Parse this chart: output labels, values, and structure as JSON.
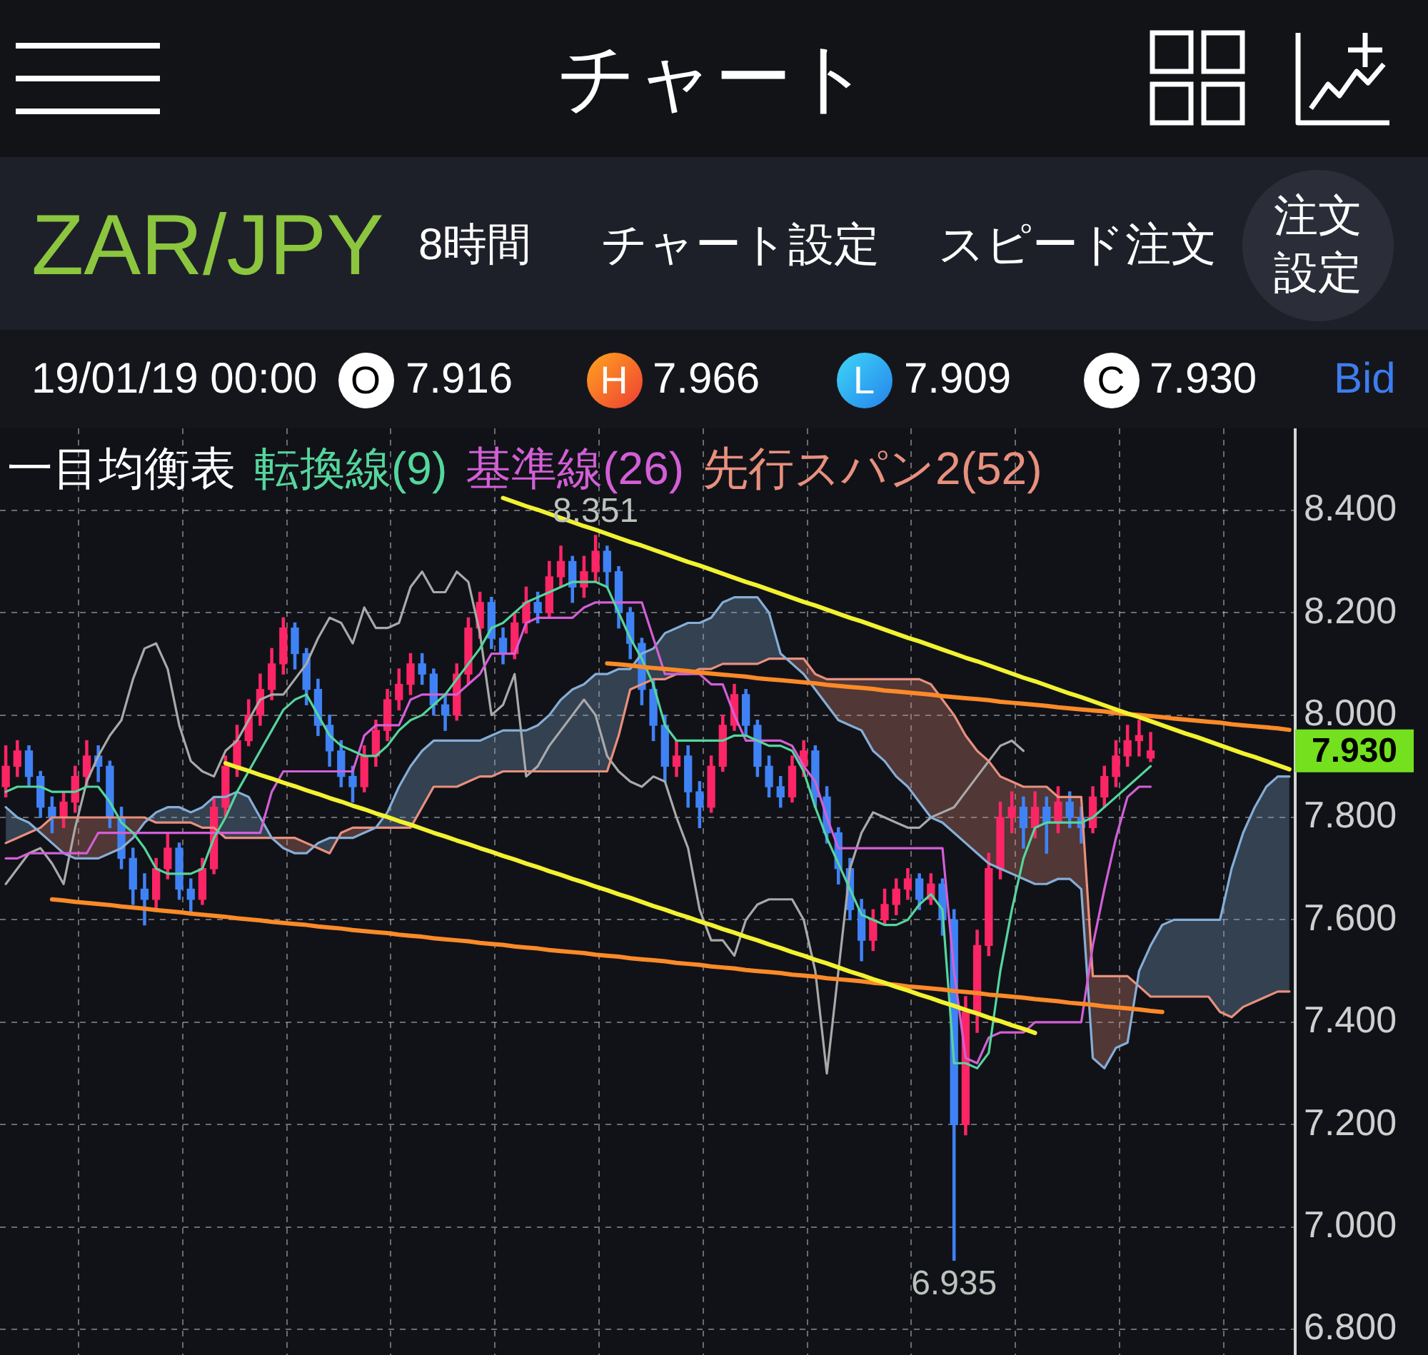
{
  "chart_data": {
    "type": "candlestick",
    "title": "ZAR/JPY",
    "subtitle": "8時間",
    "legend_title": "一目均衡表",
    "annotations": [
      "チャート",
      "チャート設定",
      "スピード注文",
      "注文設定",
      "19/01/19 00:00",
      "O",
      "7.916",
      "H",
      "7.966",
      "L",
      "7.909",
      "C",
      "7.930",
      "Bid",
      "7.930",
      {
        "text": "8.351",
        "y": 8.351
      },
      {
        "text": "6.935",
        "y": 6.935
      }
    ],
    "categories": [
      null,
      null,
      null,
      null,
      null,
      null,
      null,
      null,
      null,
      null,
      null,
      null,
      null,
      null,
      null,
      null,
      null,
      null,
      null,
      null,
      null,
      null,
      null,
      null,
      null,
      null,
      null,
      null,
      null,
      null,
      null,
      null,
      null,
      null,
      null,
      null,
      null,
      null,
      null,
      null,
      null,
      null,
      null,
      null,
      null,
      null,
      null,
      null,
      null,
      null,
      null,
      null,
      null,
      null,
      null,
      null,
      null,
      null,
      null,
      null,
      null,
      null,
      null,
      null,
      null,
      null,
      null,
      null,
      null,
      null,
      null,
      null,
      null,
      null,
      null,
      null,
      null,
      null,
      null,
      null,
      null,
      null,
      null,
      null,
      null,
      null,
      null,
      null,
      null,
      null,
      null,
      null,
      null,
      null,
      null,
      null,
      null,
      null,
      null,
      null,
      null,
      null,
      null,
      null,
      null,
      null,
      null,
      null,
      null,
      null,
      null,
      null
    ],
    "ohlc": [
      [
        7.86,
        7.94,
        7.84,
        7.9
      ],
      [
        7.9,
        7.95,
        7.88,
        7.93
      ],
      [
        7.93,
        7.94,
        7.86,
        7.88
      ],
      [
        7.88,
        7.89,
        7.8,
        7.82
      ],
      [
        7.82,
        7.84,
        7.77,
        7.8
      ],
      [
        7.8,
        7.85,
        7.78,
        7.83
      ],
      [
        7.83,
        7.9,
        7.81,
        7.88
      ],
      [
        7.88,
        7.95,
        7.86,
        7.92
      ],
      [
        7.92,
        7.94,
        7.87,
        7.9
      ],
      [
        7.9,
        7.91,
        7.78,
        7.8
      ],
      [
        7.8,
        7.82,
        7.7,
        7.72
      ],
      [
        7.72,
        7.74,
        7.63,
        7.66
      ],
      [
        7.66,
        7.69,
        7.59,
        7.64
      ],
      [
        7.64,
        7.72,
        7.62,
        7.7
      ],
      [
        7.7,
        7.77,
        7.68,
        7.74
      ],
      [
        7.74,
        7.75,
        7.64,
        7.66
      ],
      [
        7.66,
        7.68,
        7.61,
        7.64
      ],
      [
        7.64,
        7.72,
        7.63,
        7.7
      ],
      [
        7.7,
        7.84,
        7.69,
        7.82
      ],
      [
        7.82,
        7.92,
        7.8,
        7.9
      ],
      [
        7.9,
        7.98,
        7.88,
        7.95
      ],
      [
        7.95,
        8.03,
        7.94,
        8.0
      ],
      [
        8.0,
        8.08,
        7.98,
        8.05
      ],
      [
        8.05,
        8.13,
        8.03,
        8.1
      ],
      [
        8.1,
        8.19,
        8.08,
        8.17
      ],
      [
        8.17,
        8.18,
        8.09,
        8.12
      ],
      [
        8.12,
        8.13,
        8.02,
        8.05
      ],
      [
        8.05,
        8.07,
        7.96,
        7.98
      ],
      [
        7.98,
        8.0,
        7.9,
        7.93
      ],
      [
        7.93,
        7.95,
        7.86,
        7.88
      ],
      [
        7.88,
        7.9,
        7.83,
        7.86
      ],
      [
        7.86,
        7.94,
        7.85,
        7.92
      ],
      [
        7.92,
        7.99,
        7.9,
        7.97
      ],
      [
        7.97,
        8.05,
        7.95,
        8.03
      ],
      [
        8.03,
        8.09,
        8.01,
        8.06
      ],
      [
        8.06,
        8.12,
        8.04,
        8.1
      ],
      [
        8.1,
        8.12,
        8.06,
        8.08
      ],
      [
        8.08,
        8.09,
        8.0,
        8.02
      ],
      [
        8.02,
        8.04,
        7.97,
        8.0
      ],
      [
        8.0,
        8.1,
        7.99,
        8.08
      ],
      [
        8.08,
        8.19,
        8.06,
        8.17
      ],
      [
        8.17,
        8.24,
        8.15,
        8.22
      ],
      [
        8.22,
        8.23,
        8.13,
        8.15
      ],
      [
        8.15,
        8.17,
        8.1,
        8.12
      ],
      [
        8.12,
        8.2,
        8.11,
        8.18
      ],
      [
        8.18,
        8.25,
        8.16,
        8.22
      ],
      [
        8.22,
        8.24,
        8.18,
        8.2
      ],
      [
        8.2,
        8.3,
        8.19,
        8.27
      ],
      [
        8.27,
        8.33,
        8.25,
        8.3
      ],
      [
        8.3,
        8.31,
        8.22,
        8.25
      ],
      [
        8.25,
        8.31,
        8.23,
        8.28
      ],
      [
        8.28,
        8.351,
        8.26,
        8.32
      ],
      [
        8.32,
        8.33,
        8.25,
        8.28
      ],
      [
        8.28,
        8.29,
        8.17,
        8.2
      ],
      [
        8.2,
        8.21,
        8.11,
        8.14
      ],
      [
        8.14,
        8.15,
        8.02,
        8.05
      ],
      [
        8.05,
        8.07,
        7.95,
        7.98
      ],
      [
        7.98,
        8.0,
        7.87,
        7.9
      ],
      [
        7.9,
        7.95,
        7.88,
        7.92
      ],
      [
        7.92,
        7.94,
        7.82,
        7.85
      ],
      [
        7.85,
        7.87,
        7.78,
        7.82
      ],
      [
        7.82,
        7.92,
        7.81,
        7.9
      ],
      [
        7.9,
        8.0,
        7.89,
        7.98
      ],
      [
        7.98,
        8.06,
        7.97,
        8.04
      ],
      [
        8.04,
        8.05,
        7.96,
        7.98
      ],
      [
        7.98,
        7.99,
        7.88,
        7.9
      ],
      [
        7.9,
        7.92,
        7.84,
        7.86
      ],
      [
        7.86,
        7.88,
        7.82,
        7.84
      ],
      [
        7.84,
        7.92,
        7.83,
        7.9
      ],
      [
        7.9,
        7.95,
        7.88,
        7.93
      ],
      [
        7.93,
        7.94,
        7.82,
        7.84
      ],
      [
        7.84,
        7.86,
        7.75,
        7.77
      ],
      [
        7.77,
        7.78,
        7.67,
        7.7
      ],
      [
        7.7,
        7.72,
        7.6,
        7.62
      ],
      [
        7.62,
        7.64,
        7.52,
        7.56
      ],
      [
        7.56,
        7.62,
        7.54,
        7.6
      ],
      [
        7.6,
        7.66,
        7.59,
        7.63
      ],
      [
        7.63,
        7.68,
        7.61,
        7.66
      ],
      [
        7.66,
        7.7,
        7.64,
        7.68
      ],
      [
        7.68,
        7.69,
        7.62,
        7.64
      ],
      [
        7.64,
        7.69,
        7.63,
        7.67
      ],
      [
        7.67,
        7.68,
        7.57,
        7.6
      ],
      [
        7.6,
        7.62,
        6.935,
        7.2
      ],
      [
        7.2,
        7.45,
        7.18,
        7.42
      ],
      [
        7.42,
        7.58,
        7.38,
        7.55
      ],
      [
        7.55,
        7.73,
        7.53,
        7.7
      ],
      [
        7.7,
        7.83,
        7.68,
        7.8
      ],
      [
        7.8,
        7.85,
        7.77,
        7.82
      ],
      [
        7.82,
        7.84,
        7.74,
        7.78
      ],
      [
        7.78,
        7.85,
        7.76,
        7.82
      ],
      [
        7.82,
        7.84,
        7.73,
        7.79
      ],
      [
        7.79,
        7.86,
        7.77,
        7.83
      ],
      [
        7.83,
        7.85,
        7.78,
        7.8
      ],
      [
        7.8,
        7.82,
        7.75,
        7.78
      ],
      [
        7.78,
        7.86,
        7.77,
        7.84
      ],
      [
        7.84,
        7.9,
        7.82,
        7.88
      ],
      [
        7.88,
        7.95,
        7.86,
        7.92
      ],
      [
        7.92,
        7.98,
        7.9,
        7.95
      ],
      [
        7.95,
        7.99,
        7.92,
        7.96
      ],
      [
        7.916,
        7.966,
        7.909,
        7.93
      ],
      null,
      null,
      null,
      null,
      null,
      null,
      null,
      null,
      null,
      null,
      null,
      null
    ],
    "colors": [
      "#fc2565",
      "#fc2565",
      "#3f82f5",
      "#3f82f5",
      "#3f82f5",
      "#fc2565",
      "#fc2565",
      "#fc2565",
      "#3f82f5",
      "#3f82f5",
      "#3f82f5",
      "#3f82f5",
      "#3f82f5",
      "#fc2565",
      "#fc2565",
      "#3f82f5",
      "#3f82f5",
      "#fc2565",
      "#fc2565",
      "#fc2565",
      "#fc2565",
      "#fc2565",
      "#fc2565",
      "#fc2565",
      "#fc2565",
      "#3f82f5",
      "#3f82f5",
      "#3f82f5",
      "#3f82f5",
      "#3f82f5",
      "#3f82f5",
      "#fc2565",
      "#fc2565",
      "#fc2565",
      "#fc2565",
      "#fc2565",
      "#3f82f5",
      "#3f82f5",
      "#3f82f5",
      "#fc2565",
      "#fc2565",
      "#fc2565",
      "#3f82f5",
      "#3f82f5",
      "#fc2565",
      "#fc2565",
      "#3f82f5",
      "#fc2565",
      "#fc2565",
      "#3f82f5",
      "#fc2565",
      "#fc2565",
      "#3f82f5",
      "#3f82f5",
      "#3f82f5",
      "#3f82f5",
      "#3f82f5",
      "#3f82f5",
      "#fc2565",
      "#3f82f5",
      "#3f82f5",
      "#fc2565",
      "#fc2565",
      "#fc2565",
      "#3f82f5",
      "#3f82f5",
      "#3f82f5",
      "#3f82f5",
      "#fc2565",
      "#fc2565",
      "#3f82f5",
      "#3f82f5",
      "#3f82f5",
      "#3f82f5",
      "#3f82f5",
      "#fc2565",
      "#fc2565",
      "#fc2565",
      "#fc2565",
      "#3f82f5",
      "#fc2565",
      "#3f82f5",
      "#3f82f5",
      "#fc2565",
      "#fc2565",
      "#fc2565",
      "#fc2565",
      "#fc2565",
      "#3f82f5",
      "#fc2565",
      "#3f82f5",
      "#fc2565",
      "#3f82f5",
      "#3f82f5",
      "#fc2565",
      "#fc2565",
      "#fc2565",
      "#fc2565",
      "#fc2565",
      "#fc2565",
      null,
      null,
      null,
      null,
      null,
      null,
      null,
      null,
      null,
      null,
      null,
      null
    ],
    "series": [
      {
        "type": "line",
        "name": "転換線(9)",
        "color": "#55d69c",
        "values": [
          7.85,
          7.86,
          7.86,
          7.86,
          7.85,
          7.85,
          7.85,
          7.86,
          7.86,
          7.83,
          7.79,
          7.77,
          7.74,
          7.7,
          7.69,
          7.69,
          7.69,
          7.7,
          7.76,
          7.8,
          7.85,
          7.89,
          7.93,
          7.97,
          8.01,
          8.03,
          8.04,
          8.0,
          7.96,
          7.94,
          7.93,
          7.92,
          7.92,
          7.94,
          7.97,
          7.99,
          8.0,
          8.02,
          8.04,
          8.07,
          8.1,
          8.13,
          8.17,
          8.18,
          8.2,
          8.22,
          8.23,
          8.24,
          8.25,
          8.26,
          8.26,
          8.26,
          8.25,
          8.2,
          8.15,
          8.11,
          8.06,
          7.98,
          7.95,
          7.95,
          7.95,
          7.95,
          7.95,
          7.96,
          7.96,
          7.95,
          7.94,
          7.94,
          7.93,
          7.89,
          7.82,
          7.76,
          7.71,
          7.66,
          7.61,
          7.6,
          7.59,
          7.59,
          7.6,
          7.63,
          7.65,
          7.62,
          7.32,
          7.32,
          7.31,
          7.34,
          7.5,
          7.62,
          7.72,
          7.78,
          7.79,
          7.79,
          7.79,
          7.79,
          7.8,
          7.82,
          7.84,
          7.86,
          7.88,
          7.9,
          null,
          null,
          null,
          null,
          null,
          null,
          null,
          null,
          null,
          null,
          null,
          null
        ]
      },
      {
        "type": "line",
        "name": "基準線(26)",
        "color": "#d35fd6",
        "values": [
          7.72,
          7.72,
          7.73,
          7.73,
          7.73,
          7.73,
          7.73,
          7.73,
          7.77,
          7.77,
          7.77,
          7.77,
          7.77,
          7.77,
          7.77,
          7.77,
          7.77,
          7.77,
          7.77,
          7.77,
          7.77,
          7.77,
          7.77,
          7.85,
          7.89,
          7.89,
          7.89,
          7.89,
          7.89,
          7.89,
          7.89,
          7.96,
          7.98,
          7.98,
          7.98,
          8.03,
          8.04,
          8.04,
          8.04,
          8.04,
          8.06,
          8.08,
          8.12,
          8.12,
          8.12,
          8.18,
          8.19,
          8.19,
          8.19,
          8.19,
          8.21,
          8.22,
          8.22,
          8.22,
          8.22,
          8.22,
          8.15,
          8.08,
          8.08,
          8.08,
          8.08,
          8.06,
          8.06,
          8.0,
          7.95,
          7.95,
          7.95,
          7.95,
          7.94,
          7.9,
          7.87,
          7.8,
          7.74,
          7.74,
          7.74,
          7.74,
          7.74,
          7.74,
          7.74,
          7.74,
          7.74,
          7.74,
          7.5,
          7.33,
          7.32,
          7.37,
          7.38,
          7.38,
          7.38,
          7.4,
          7.4,
          7.4,
          7.4,
          7.4,
          7.55,
          7.66,
          7.76,
          7.84,
          7.86,
          7.86,
          null,
          null,
          null,
          null,
          null,
          null,
          null,
          null,
          null,
          null,
          null,
          null
        ]
      },
      {
        "type": "line",
        "color": "#86aed6",
        "values": [
          7.82,
          7.8,
          7.79,
          7.77,
          7.75,
          7.73,
          7.72,
          7.72,
          7.72,
          7.73,
          7.74,
          7.76,
          7.79,
          7.81,
          7.82,
          7.82,
          7.81,
          7.82,
          7.84,
          7.84,
          7.85,
          7.84,
          7.8,
          7.76,
          7.74,
          7.73,
          7.73,
          7.75,
          7.76,
          7.76,
          7.76,
          7.77,
          7.78,
          7.81,
          7.86,
          7.9,
          7.93,
          7.95,
          7.95,
          7.95,
          7.95,
          7.95,
          7.96,
          7.97,
          7.97,
          7.97,
          7.98,
          8.0,
          8.03,
          8.05,
          8.06,
          8.08,
          8.08,
          8.09,
          8.09,
          8.12,
          8.13,
          8.16,
          8.17,
          8.18,
          8.18,
          8.19,
          8.22,
          8.23,
          8.23,
          8.23,
          8.2,
          8.12,
          8.1,
          8.08,
          8.05,
          8.02,
          7.99,
          7.98,
          7.97,
          7.93,
          7.91,
          7.88,
          7.86,
          7.83,
          7.8,
          7.79,
          7.77,
          7.75,
          7.73,
          7.71,
          7.7,
          7.69,
          7.68,
          7.67,
          7.67,
          7.68,
          7.68,
          7.66,
          7.33,
          7.31,
          7.35,
          7.36,
          7.5,
          7.55,
          7.59,
          7.6,
          7.6,
          7.6,
          7.6,
          7.6,
          7.7,
          7.77,
          7.82,
          7.86,
          7.88,
          7.88
        ]
      },
      {
        "type": "line",
        "name": "先行スパン2(52)",
        "color": "#e8907e",
        "values": [
          7.75,
          7.76,
          7.77,
          7.78,
          7.8,
          7.8,
          7.8,
          7.8,
          7.8,
          7.8,
          7.8,
          7.8,
          7.8,
          7.79,
          7.79,
          7.79,
          7.79,
          7.78,
          7.78,
          7.76,
          7.76,
          7.76,
          7.76,
          7.76,
          7.76,
          7.76,
          7.75,
          7.74,
          7.73,
          7.77,
          7.78,
          7.78,
          7.78,
          7.78,
          7.78,
          7.78,
          7.82,
          7.86,
          7.86,
          7.86,
          7.87,
          7.88,
          7.88,
          7.89,
          7.89,
          7.89,
          7.89,
          7.89,
          7.89,
          7.89,
          7.89,
          7.89,
          7.89,
          7.96,
          8.05,
          8.06,
          8.07,
          8.07,
          8.08,
          8.08,
          8.09,
          8.09,
          8.1,
          8.1,
          8.1,
          8.1,
          8.11,
          8.11,
          8.11,
          8.11,
          8.08,
          8.07,
          8.07,
          8.07,
          8.07,
          8.07,
          8.07,
          8.07,
          8.07,
          8.07,
          8.06,
          8.03,
          8.0,
          7.96,
          7.93,
          7.91,
          7.88,
          7.87,
          7.86,
          7.86,
          7.86,
          7.84,
          7.84,
          7.84,
          7.49,
          7.49,
          7.49,
          7.49,
          7.47,
          7.45,
          7.45,
          7.45,
          7.45,
          7.45,
          7.45,
          7.42,
          7.41,
          7.43,
          7.44,
          7.45,
          7.46,
          7.46
        ],
        "lower": [
          7.75,
          7.76,
          7.77,
          7.77,
          7.75,
          7.73,
          7.72,
          7.72,
          7.72,
          7.73,
          7.74,
          7.76,
          7.79,
          7.79,
          7.79,
          7.79,
          7.79,
          7.78,
          7.78,
          7.76,
          7.76,
          7.76,
          7.76,
          7.76,
          7.74,
          7.73,
          7.73,
          7.74,
          7.73,
          7.76,
          7.76,
          7.77,
          7.78,
          7.78,
          7.78,
          7.78,
          7.82,
          7.86,
          7.86,
          7.86,
          7.87,
          7.88,
          7.88,
          7.89,
          7.89,
          7.89,
          7.89,
          7.89,
          7.89,
          7.89,
          7.89,
          7.89,
          7.89,
          7.96,
          8.05,
          8.06,
          8.07,
          8.07,
          8.08,
          8.08,
          8.09,
          8.09,
          8.1,
          8.1,
          8.1,
          8.1,
          8.11,
          8.11,
          8.1,
          8.08,
          8.05,
          8.02,
          7.99,
          7.98,
          7.97,
          7.93,
          7.91,
          7.88,
          7.86,
          7.83,
          7.8,
          7.79,
          7.77,
          7.75,
          7.73,
          7.71,
          7.7,
          7.69,
          7.68,
          7.67,
          7.67,
          7.68,
          7.68,
          7.66,
          7.33,
          7.31,
          7.35,
          7.36,
          7.47,
          7.45,
          7.45,
          7.45,
          7.45,
          7.45,
          7.45,
          7.42,
          7.41,
          7.43,
          7.44,
          7.45,
          7.46,
          7.46
        ],
        "upper": [
          7.82,
          7.8,
          7.79,
          7.78,
          7.8,
          7.8,
          7.8,
          7.8,
          7.8,
          7.8,
          7.8,
          7.8,
          7.8,
          7.81,
          7.82,
          7.82,
          7.81,
          7.82,
          7.84,
          7.84,
          7.85,
          7.84,
          7.8,
          7.76,
          7.76,
          7.76,
          7.75,
          7.75,
          7.76,
          7.77,
          7.78,
          7.78,
          7.78,
          7.81,
          7.86,
          7.9,
          7.93,
          7.95,
          7.95,
          7.95,
          7.95,
          7.95,
          7.96,
          7.97,
          7.97,
          7.97,
          7.98,
          8.0,
          8.03,
          8.05,
          8.06,
          8.08,
          8.08,
          8.09,
          8.09,
          8.12,
          8.13,
          8.16,
          8.17,
          8.18,
          8.18,
          8.19,
          8.22,
          8.23,
          8.23,
          8.23,
          8.2,
          8.12,
          8.11,
          8.11,
          8.08,
          8.07,
          8.07,
          8.07,
          8.07,
          8.07,
          8.07,
          8.07,
          8.07,
          8.07,
          8.06,
          8.03,
          8.0,
          7.96,
          7.93,
          7.91,
          7.88,
          7.87,
          7.86,
          7.86,
          7.86,
          7.84,
          7.84,
          7.84,
          7.49,
          7.49,
          7.49,
          7.49,
          7.5,
          7.55,
          7.59,
          7.6,
          7.6,
          7.6,
          7.6,
          7.6,
          7.7,
          7.77,
          7.82,
          7.86,
          7.88,
          7.88
        ]
      },
      {
        "type": "line",
        "color": "#a9a9a9",
        "values": [
          7.67,
          7.7,
          7.73,
          7.74,
          7.71,
          7.67,
          7.78,
          7.87,
          7.92,
          7.96,
          7.99,
          8.07,
          8.13,
          8.14,
          8.09,
          7.98,
          7.91,
          7.89,
          7.88,
          7.93,
          7.95,
          7.99,
          8.03,
          8.04,
          8.04,
          8.07,
          8.1,
          8.15,
          8.19,
          8.18,
          8.14,
          8.21,
          8.17,
          8.17,
          8.18,
          8.25,
          8.28,
          8.24,
          8.24,
          8.28,
          8.26,
          8.16,
          8.0,
          8.02,
          8.08,
          7.88,
          7.9,
          7.94,
          7.97,
          8.0,
          8.03,
          8.0,
          7.92,
          7.89,
          7.87,
          7.86,
          7.88,
          7.87,
          7.8,
          7.74,
          7.62,
          7.56,
          7.56,
          7.53,
          7.6,
          7.63,
          7.64,
          7.64,
          7.64,
          7.6,
          7.5,
          7.3,
          7.5,
          7.7,
          7.77,
          7.81,
          7.8,
          7.79,
          7.78,
          7.78,
          7.8,
          7.81,
          7.82,
          7.85,
          7.88,
          7.91,
          7.94,
          7.95,
          7.93,
          null,
          null,
          null,
          null,
          null,
          null,
          null,
          null,
          null,
          null,
          null,
          null,
          null,
          null,
          null,
          null,
          null,
          null,
          null,
          null,
          null,
          null,
          null
        ]
      },
      {
        "type": "line",
        "color": "#f2f230",
        "values": [
          null,
          null,
          null,
          null,
          null,
          null,
          null,
          null,
          null,
          null,
          null,
          null,
          null,
          null,
          null,
          null,
          null,
          null,
          null,
          null,
          null,
          null,
          null,
          null,
          null,
          null,
          null,
          null,
          null,
          null,
          null,
          null,
          null,
          null,
          null,
          null,
          null,
          null,
          null,
          null,
          null,
          null,
          null,
          8.424,
          8.416,
          8.408,
          8.401,
          8.393,
          8.385,
          8.377,
          8.369,
          8.362,
          8.354,
          8.346,
          8.338,
          8.331,
          8.323,
          8.315,
          8.307,
          8.299,
          8.292,
          8.284,
          8.276,
          8.268,
          8.26,
          8.253,
          8.245,
          8.237,
          8.229,
          8.221,
          8.214,
          8.206,
          8.198,
          8.19,
          8.183,
          8.175,
          8.167,
          8.159,
          8.151,
          8.144,
          8.136,
          8.128,
          8.12,
          8.112,
          8.105,
          8.097,
          8.089,
          8.081,
          8.073,
          8.066,
          8.058,
          8.05,
          8.042,
          8.035,
          8.027,
          8.019,
          8.011,
          8.003,
          7.996,
          7.988,
          7.98,
          7.972,
          7.964,
          7.957,
          7.949,
          7.941,
          7.933,
          7.925,
          7.918,
          7.91,
          7.902,
          7.894
        ]
      },
      {
        "type": "line",
        "color": "#f2f230",
        "values": [
          null,
          null,
          null,
          null,
          null,
          null,
          null,
          null,
          null,
          null,
          null,
          null,
          null,
          null,
          null,
          null,
          null,
          null,
          null,
          7.906,
          7.898,
          7.891,
          7.883,
          7.876,
          7.868,
          7.861,
          7.853,
          7.846,
          7.838,
          7.831,
          7.823,
          7.816,
          7.808,
          7.801,
          7.793,
          7.786,
          7.778,
          7.77,
          7.763,
          7.755,
          7.748,
          7.74,
          7.733,
          7.725,
          7.718,
          7.71,
          7.703,
          7.695,
          7.688,
          7.68,
          7.673,
          7.665,
          7.658,
          7.65,
          7.643,
          7.635,
          7.627,
          7.62,
          7.612,
          7.605,
          7.597,
          7.59,
          7.582,
          7.575,
          7.567,
          7.56,
          7.552,
          7.545,
          7.537,
          7.53,
          7.522,
          7.515,
          7.507,
          7.499,
          7.492,
          7.484,
          7.477,
          7.469,
          7.462,
          7.454,
          7.447,
          7.439,
          7.432,
          7.424,
          7.417,
          7.409,
          7.402,
          7.394,
          7.387,
          7.379,
          null,
          null,
          null,
          null,
          null,
          null,
          null,
          null,
          null,
          null,
          null,
          null,
          null,
          null,
          null,
          null,
          null,
          null,
          null,
          null,
          null,
          null
        ]
      },
      {
        "type": "line",
        "color": "#fb8a28",
        "values": [
          null,
          null,
          null,
          null,
          null,
          null,
          null,
          null,
          null,
          null,
          null,
          null,
          null,
          null,
          null,
          null,
          null,
          null,
          null,
          null,
          null,
          null,
          null,
          null,
          null,
          null,
          null,
          null,
          null,
          null,
          null,
          null,
          null,
          null,
          null,
          null,
          null,
          null,
          null,
          null,
          null,
          null,
          null,
          null,
          null,
          null,
          null,
          null,
          null,
          null,
          null,
          null,
          8.101,
          8.099,
          8.097,
          8.094,
          8.092,
          8.09,
          8.088,
          8.086,
          8.083,
          8.081,
          8.079,
          8.077,
          8.075,
          8.072,
          8.07,
          8.068,
          8.066,
          8.064,
          8.062,
          8.059,
          8.057,
          8.055,
          8.053,
          8.051,
          8.048,
          8.046,
          8.044,
          8.042,
          8.04,
          8.037,
          8.035,
          8.033,
          8.031,
          8.029,
          8.026,
          8.024,
          8.022,
          8.02,
          8.018,
          8.015,
          8.013,
          8.011,
          8.009,
          8.007,
          8.004,
          8.002,
          8.0,
          7.998,
          7.996,
          7.993,
          7.991,
          7.989,
          7.987,
          7.985,
          7.982,
          7.98,
          7.978,
          7.976,
          7.974,
          7.971
        ]
      },
      {
        "type": "line",
        "color": "#fb8a28",
        "values": [
          null,
          null,
          null,
          null,
          7.64,
          7.638,
          7.635,
          7.633,
          7.631,
          7.629,
          7.626,
          7.624,
          7.622,
          7.619,
          7.617,
          7.615,
          7.612,
          7.61,
          7.608,
          7.606,
          7.603,
          7.601,
          7.599,
          7.596,
          7.594,
          7.592,
          7.59,
          7.587,
          7.585,
          7.583,
          7.58,
          7.578,
          7.576,
          7.574,
          7.571,
          7.569,
          7.567,
          7.564,
          7.562,
          7.56,
          7.558,
          7.555,
          7.553,
          7.551,
          7.548,
          7.546,
          7.544,
          7.541,
          7.539,
          7.537,
          7.535,
          7.532,
          7.53,
          7.528,
          7.525,
          7.523,
          7.521,
          7.519,
          7.516,
          7.514,
          7.512,
          7.509,
          7.507,
          7.505,
          7.502,
          7.5,
          7.498,
          7.496,
          7.493,
          7.491,
          7.489,
          7.486,
          7.484,
          7.482,
          7.48,
          7.477,
          7.475,
          7.473,
          7.47,
          7.468,
          7.466,
          7.464,
          7.461,
          7.459,
          7.457,
          7.454,
          7.452,
          7.45,
          7.448,
          7.445,
          7.443,
          7.441,
          7.438,
          7.436,
          7.434,
          7.431,
          7.429,
          7.427,
          7.425,
          7.422,
          7.42,
          null,
          null,
          null,
          null,
          null,
          null,
          null,
          null,
          null,
          null,
          null
        ]
      }
    ],
    "ylim": [
      6.75,
      8.56
    ],
    "yticks": [
      {
        "value": 6.8,
        "label": "6.800"
      },
      {
        "value": 7.0,
        "label": "7.000"
      },
      {
        "value": 7.2,
        "label": "7.200"
      },
      {
        "value": 7.4,
        "label": "7.400"
      },
      {
        "value": 7.6,
        "label": "7.600"
      },
      {
        "value": 7.8,
        "label": "7.800"
      },
      {
        "value": 8.0,
        "label": "8.000"
      },
      {
        "value": 8.2,
        "label": "8.200"
      },
      {
        "value": 8.4,
        "label": "8.400"
      }
    ],
    "grid": true,
    "legend": "top left",
    "tick_labels": "y"
  }
}
